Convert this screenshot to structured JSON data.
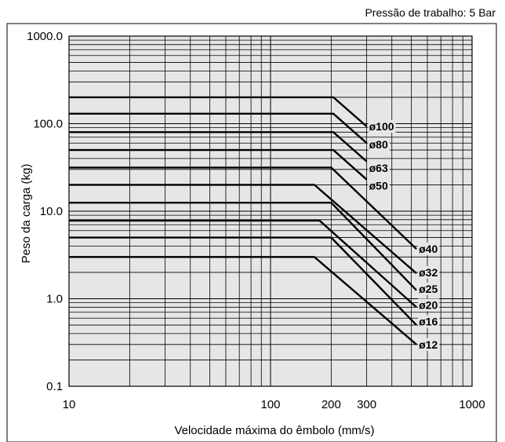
{
  "chart_data": {
    "type": "line",
    "title": "",
    "note": "Pressão de trabalho: 5 Bar",
    "xlabel": "Velocidade máxima do êmbolo (mm/s)",
    "ylabel": "Peso da carga (kg)",
    "xscale": "log",
    "yscale": "log",
    "xlim": [
      10,
      1000
    ],
    "ylim": [
      0.1,
      1000
    ],
    "grid": true,
    "x_ticks": [
      10,
      100,
      200,
      300,
      1000
    ],
    "x_tick_labels": [
      "10",
      "100",
      "200",
      "300",
      "1000"
    ],
    "y_ticks": [
      0.1,
      1,
      10,
      100,
      1000
    ],
    "y_tick_labels": [
      "0.1",
      "1.0",
      "10.0",
      "100.0",
      "1000.0"
    ],
    "series": [
      {
        "name": "ø100",
        "x": [
          10,
          205,
          300
        ],
        "y": [
          200,
          200,
          93
        ],
        "label_at": [
          300,
          93
        ]
      },
      {
        "name": "ø80",
        "x": [
          10,
          205,
          300
        ],
        "y": [
          130,
          130,
          60
        ],
        "label_at": [
          300,
          58
        ]
      },
      {
        "name": "ø63",
        "x": [
          10,
          205,
          300
        ],
        "y": [
          80,
          80,
          37
        ],
        "label_at": [
          300,
          31
        ]
      },
      {
        "name": "ø50",
        "x": [
          10,
          205,
          300
        ],
        "y": [
          50,
          50,
          23
        ],
        "label_at": [
          300,
          19.5
        ]
      },
      {
        "name": "ø40",
        "x": [
          10,
          200,
          530
        ],
        "y": [
          31.5,
          31.5,
          3.7
        ],
        "label_at": [
          530,
          3.7
        ]
      },
      {
        "name": "ø32",
        "x": [
          10,
          165,
          530
        ],
        "y": [
          20,
          20,
          1.95
        ],
        "label_at": [
          530,
          2.0
        ]
      },
      {
        "name": "ø25",
        "x": [
          10,
          200,
          530
        ],
        "y": [
          12.5,
          12.5,
          1.25
        ],
        "label_at": [
          530,
          1.3
        ]
      },
      {
        "name": "ø20",
        "x": [
          10,
          175,
          530
        ],
        "y": [
          7.8,
          7.8,
          0.8
        ],
        "label_at": [
          530,
          0.85
        ]
      },
      {
        "name": "ø16",
        "x": [
          10,
          200,
          530
        ],
        "y": [
          5,
          5,
          0.5
        ],
        "label_at": [
          530,
          0.55
        ]
      },
      {
        "name": "ø12",
        "x": [
          10,
          165,
          530
        ],
        "y": [
          3,
          3,
          0.3
        ],
        "label_at": [
          530,
          0.3
        ]
      }
    ]
  }
}
